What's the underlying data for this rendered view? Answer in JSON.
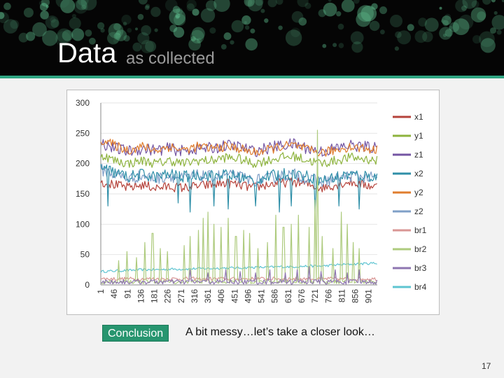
{
  "slide": {
    "title": "Data",
    "subtitle": "as collected",
    "conclusion_label": "Conclusion",
    "conclusion_text": "A bit messy…let’s take a closer look…",
    "slide_number": "17"
  },
  "colors": {
    "header_bg": "#050505",
    "accent": "#2fa582",
    "badge_bg": "#27956f"
  },
  "chart_data": {
    "type": "line",
    "title": "",
    "xlabel": "",
    "ylabel": "",
    "ylim": [
      0,
      300
    ],
    "yticks": [
      0,
      50,
      100,
      150,
      200,
      250,
      300
    ],
    "x_range": [
      1,
      930
    ],
    "x_tick_labels": [
      "1",
      "46",
      "91",
      "136",
      "181",
      "226",
      "271",
      "316",
      "361",
      "406",
      "451",
      "496",
      "541",
      "586",
      "631",
      "676",
      "721",
      "766",
      "811",
      "856",
      "901"
    ],
    "grid": "horizontal-light",
    "legend_position": "right",
    "series": [
      {
        "name": "x1",
        "color": "#b5433b",
        "baseline": [
          170,
          165,
          160,
          165,
          160,
          162,
          160,
          163,
          165,
          168,
          165,
          160,
          165,
          168,
          170,
          165,
          160,
          165,
          170,
          165,
          162
        ],
        "noise": 8,
        "dips": []
      },
      {
        "name": "y1",
        "color": "#8db33d",
        "baseline": [
          215,
          205,
          200,
          205,
          200,
          205,
          200,
          205,
          205,
          210,
          208,
          200,
          205,
          210,
          212,
          205,
          200,
          205,
          210,
          208,
          205
        ],
        "noise": 8,
        "dips": []
      },
      {
        "name": "z1",
        "color": "#7456a3",
        "baseline": [
          235,
          225,
          220,
          225,
          222,
          225,
          220,
          225,
          225,
          230,
          228,
          220,
          225,
          230,
          232,
          225,
          220,
          225,
          230,
          228,
          225
        ],
        "noise": 10,
        "dips": []
      },
      {
        "name": "x2",
        "color": "#2f8fa8",
        "baseline": [
          195,
          185,
          178,
          182,
          178,
          182,
          178,
          182,
          180,
          182,
          178,
          172,
          178,
          182,
          185,
          178,
          172,
          178,
          182,
          180,
          178
        ],
        "noise": 10,
        "dips": [
          [
            26,
            130
          ],
          [
            260,
            135
          ],
          [
            300,
            120
          ],
          [
            380,
            130
          ],
          [
            430,
            125
          ],
          [
            520,
            130
          ],
          [
            600,
            120
          ],
          [
            640,
            130
          ],
          [
            720,
            120
          ],
          [
            800,
            130
          ],
          [
            870,
            125
          ]
        ]
      },
      {
        "name": "y2",
        "color": "#e07d2e",
        "baseline": [
          240,
          230,
          222,
          228,
          222,
          228,
          222,
          228,
          225,
          228,
          225,
          218,
          222,
          228,
          230,
          222,
          218,
          222,
          228,
          225,
          222
        ],
        "noise": 8,
        "dips": []
      },
      {
        "name": "z2",
        "color": "#7f9fc7",
        "baseline": [
          190,
          182,
          175,
          180,
          175,
          180,
          175,
          180,
          178,
          182,
          178,
          172,
          175,
          180,
          182,
          175,
          170,
          175,
          180,
          178,
          175
        ],
        "noise": 10,
        "dips": []
      },
      {
        "name": "br1",
        "color": "#d99694",
        "baseline": [
          10,
          10,
          10,
          10,
          10,
          10,
          10,
          10,
          10,
          10,
          10,
          10,
          10,
          10,
          10,
          10,
          10,
          10,
          10,
          10,
          10
        ],
        "noise": 3,
        "dips": []
      },
      {
        "name": "br2",
        "color": "#aecb7e",
        "baseline": [
          5,
          5,
          5,
          5,
          5,
          5,
          5,
          5,
          5,
          5,
          5,
          5,
          5,
          5,
          5,
          5,
          5,
          5,
          5,
          5,
          5
        ],
        "noise": 3,
        "spikes": [
          [
            60,
            40
          ],
          [
            90,
            55
          ],
          [
            120,
            45
          ],
          [
            150,
            70
          ],
          [
            175,
            85
          ],
          [
            200,
            60
          ],
          [
            225,
            55
          ],
          [
            280,
            65
          ],
          [
            300,
            80
          ],
          [
            330,
            90
          ],
          [
            345,
            110
          ],
          [
            360,
            120
          ],
          [
            380,
            100
          ],
          [
            405,
            95
          ],
          [
            430,
            110
          ],
          [
            455,
            80
          ],
          [
            480,
            90
          ],
          [
            500,
            85
          ],
          [
            530,
            60
          ],
          [
            560,
            70
          ],
          [
            590,
            115
          ],
          [
            615,
            95
          ],
          [
            640,
            100
          ],
          [
            665,
            115
          ],
          [
            700,
            95
          ],
          [
            720,
            140
          ],
          [
            730,
            255
          ],
          [
            745,
            80
          ],
          [
            780,
            60
          ],
          [
            810,
            120
          ],
          [
            830,
            100
          ],
          [
            850,
            70
          ],
          [
            870,
            60
          ]
        ]
      },
      {
        "name": "br3",
        "color": "#8e75b0",
        "baseline": [
          5,
          5,
          5,
          5,
          5,
          5,
          5,
          5,
          5,
          5,
          5,
          5,
          5,
          5,
          5,
          5,
          5,
          5,
          5,
          5,
          5
        ],
        "noise": 4,
        "spikes": [
          [
            300,
            25
          ],
          [
            360,
            20
          ],
          [
            420,
            25
          ],
          [
            470,
            22
          ],
          [
            520,
            20
          ],
          [
            570,
            25
          ],
          [
            620,
            20
          ],
          [
            660,
            25
          ],
          [
            700,
            30
          ],
          [
            740,
            22
          ],
          [
            790,
            25
          ],
          [
            830,
            20
          ],
          [
            870,
            25
          ]
        ]
      },
      {
        "name": "br4",
        "color": "#5ec4d1",
        "baseline": [
          22,
          23,
          24,
          25,
          25,
          26,
          26,
          27,
          27,
          28,
          28,
          29,
          29,
          30,
          30,
          31,
          31,
          33,
          34,
          35,
          36
        ],
        "noise": 2,
        "dips": []
      }
    ]
  }
}
